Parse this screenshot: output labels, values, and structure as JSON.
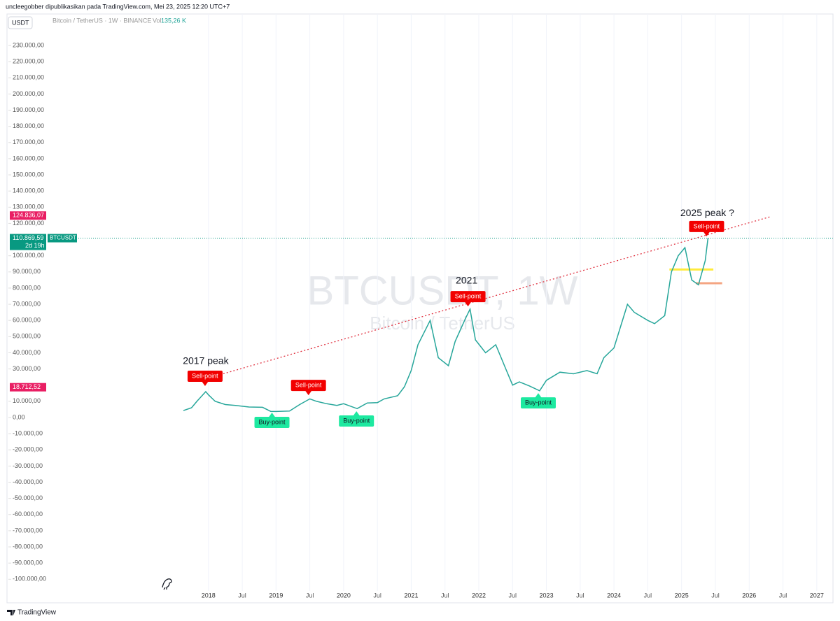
{
  "header": {
    "publisher": "uncleegobber dipublikasikan pada TradingView.com, Mei 23, 2025 12:20 UTC+7",
    "currency": "USDT",
    "symbol_info": "Bitcoin / TetherUS · 1W · BINANCE",
    "volume_label": "Vol",
    "volume": "135,26 K"
  },
  "footer": {
    "brand": "TradingView"
  },
  "chart_data": {
    "type": "line",
    "watermark": {
      "title": "BTCUSDT, 1W",
      "subtitle": "Bitcoin / TetherUS"
    },
    "x": [
      2017.63,
      2017.75,
      2017.83,
      2017.96,
      2018.0,
      2018.1,
      2018.25,
      2018.4,
      2018.6,
      2018.8,
      2018.92,
      2019.0,
      2019.2,
      2019.35,
      2019.5,
      2019.6,
      2019.75,
      2019.9,
      2020.0,
      2020.2,
      2020.35,
      2020.5,
      2020.6,
      2020.8,
      2020.9,
      2021.0,
      2021.1,
      2021.28,
      2021.4,
      2021.55,
      2021.65,
      2021.8,
      2021.87,
      2021.95,
      2022.1,
      2022.25,
      2022.4,
      2022.5,
      2022.6,
      2022.75,
      2022.9,
      2023.0,
      2023.2,
      2023.4,
      2023.6,
      2023.75,
      2023.85,
      2024.0,
      2024.2,
      2024.3,
      2024.5,
      2024.6,
      2024.75,
      2024.85,
      2024.95,
      2025.05,
      2025.15,
      2025.25,
      2025.35,
      2025.39
    ],
    "values": [
      4300,
      6000,
      10000,
      16000,
      14000,
      10000,
      8000,
      7500,
      6500,
      6300,
      3800,
      3700,
      4000,
      8000,
      11500,
      10000,
      8500,
      7500,
      8500,
      5500,
      9000,
      9200,
      11500,
      13500,
      19000,
      29000,
      45000,
      60000,
      37000,
      32000,
      47000,
      61000,
      67000,
      48000,
      40000,
      45000,
      30000,
      20000,
      22000,
      19500,
      16500,
      23000,
      28000,
      27000,
      29000,
      27000,
      37000,
      43000,
      70000,
      65000,
      60000,
      58000,
      63000,
      90000,
      100000,
      105000,
      85000,
      82000,
      97000,
      110870
    ],
    "color": "#26a69a",
    "xlim": [
      2015.02,
      2027.24
    ],
    "xticks": [
      2018,
      {
        "value": 2018.5,
        "label": "Jul"
      },
      2019,
      {
        "value": 2019.5,
        "label": "Jul"
      },
      2020,
      {
        "value": 2020.5,
        "label": "Jul"
      },
      2021,
      {
        "value": 2021.5,
        "label": "Jul"
      },
      2022,
      {
        "value": 2022.5,
        "label": "Jul"
      },
      2023,
      {
        "value": 2023.5,
        "label": "Jul"
      },
      2024,
      {
        "value": 2024.5,
        "label": "Jul"
      },
      2025,
      {
        "value": 2025.5,
        "label": "Jul"
      },
      2026,
      {
        "value": 2026.5,
        "label": "Jul"
      },
      2027
    ],
    "ylim": [
      -113700,
      240800
    ],
    "yticks": [
      {
        "value": 230000,
        "label": "230.000,00"
      },
      {
        "value": 220000,
        "label": "220.000,00"
      },
      {
        "value": 210000,
        "label": "210.000,00"
      },
      {
        "value": 200000,
        "label": "200.000,00"
      },
      {
        "value": 190000,
        "label": "190.000,00"
      },
      {
        "value": 180000,
        "label": "180.000,00"
      },
      {
        "value": 170000,
        "label": "170.000,00"
      },
      {
        "value": 160000,
        "label": "160.000,00"
      },
      {
        "value": 150000,
        "label": "150.000,00"
      },
      {
        "value": 140000,
        "label": "140.000,00"
      },
      {
        "value": 130000,
        "label": "130.000,00"
      },
      {
        "value": 120000,
        "label": "120.000,00"
      },
      {
        "value": 100000,
        "label": "100.000,00"
      },
      {
        "value": 90000,
        "label": "90.000,00"
      },
      {
        "value": 80000,
        "label": "80.000,00"
      },
      {
        "value": 70000,
        "label": "70.000,00"
      },
      {
        "value": 60000,
        "label": "60.000,00"
      },
      {
        "value": 50000,
        "label": "50.000,00"
      },
      {
        "value": 40000,
        "label": "40.000,00"
      },
      {
        "value": 30000,
        "label": "30.000,00"
      },
      {
        "value": 10000,
        "label": "10.000,00"
      },
      {
        "value": 0,
        "label": "0,00"
      },
      {
        "value": -10000,
        "label": "-10.000,00"
      },
      {
        "value": -20000,
        "label": "-20.000,00"
      },
      {
        "value": -30000,
        "label": "-30.000,00"
      },
      {
        "value": -40000,
        "label": "-40.000,00"
      },
      {
        "value": -50000,
        "label": "-50.000,00"
      },
      {
        "value": -60000,
        "label": "-60.000,00"
      },
      {
        "value": -70000,
        "label": "-70.000,00"
      },
      {
        "value": -80000,
        "label": "-80.000,00"
      },
      {
        "value": -90000,
        "label": "-90.000,00"
      },
      {
        "value": -100000,
        "label": "-100.000,00"
      }
    ],
    "grid": "vertical",
    "trendline": {
      "x": [
        2018.02,
        2026.31
      ],
      "values": [
        24640,
        124100
      ],
      "color": "#e0303f"
    },
    "levels": [
      {
        "value": 91500,
        "x": [
          2024.82,
          2025.47
        ],
        "color": "#ffeb3b"
      },
      {
        "value": 83000,
        "x": [
          2025.21,
          2025.6
        ],
        "color": "#f4a582"
      }
    ],
    "last_price": {
      "value": 110869.59,
      "label": "110.869,59",
      "symbol": "BTCUSDT",
      "countdown": "2d 19h",
      "color": "#089981"
    },
    "price_tags": [
      {
        "value": 124836.07,
        "label": "124.836,07",
        "color": "#e91e63"
      },
      {
        "value": 18712.52,
        "label": "18.712,52",
        "color": "#e91e63"
      }
    ],
    "annotations": [
      {
        "text": "2017 peak",
        "x": 2017.96,
        "y": 34590
      },
      {
        "text": "2021",
        "x": 2021.82,
        "y": 84300
      },
      {
        "text": "2025 peak ?",
        "x": 2025.38,
        "y": 126200
      }
    ],
    "signals": [
      {
        "text": "Sell-point",
        "x": 2017.95,
        "y": 19450,
        "color": "#f20000",
        "position": "above"
      },
      {
        "text": "Sell-point",
        "x": 2019.48,
        "y": 13800,
        "color": "#f20000",
        "position": "above"
      },
      {
        "text": "Sell-point",
        "x": 2021.84,
        "y": 68700,
        "color": "#f20000",
        "position": "above"
      },
      {
        "text": "Sell-point",
        "x": 2025.37,
        "y": 112000,
        "color": "#f20000",
        "position": "above"
      },
      {
        "text": "Buy-point",
        "x": 2018.94,
        "y": 3000,
        "color": "#1de9a0",
        "position": "below"
      },
      {
        "text": "Buy-point",
        "x": 2020.19,
        "y": 3900,
        "color": "#1de9a0",
        "position": "below"
      },
      {
        "text": "Buy-point",
        "x": 2022.88,
        "y": 15100,
        "color": "#1de9a0",
        "position": "below"
      }
    ]
  }
}
